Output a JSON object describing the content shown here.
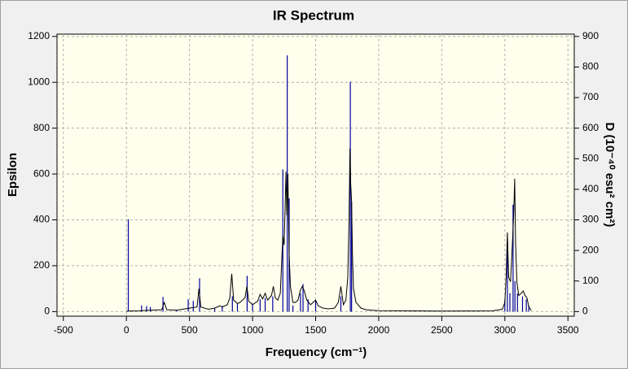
{
  "chart_data": {
    "type": "line",
    "title": "IR Spectrum",
    "xlabel": "Frequency (cm⁻¹)",
    "ylabel": "Epsilon",
    "y2label": "D (10⁻⁴⁰ esu² cm²)",
    "xlim": [
      -550,
      3550
    ],
    "xticks": [
      -500,
      0,
      500,
      1000,
      1500,
      2000,
      2500,
      3000,
      3500
    ],
    "ylim": [
      -20,
      1210
    ],
    "yticks": [
      0,
      200,
      400,
      600,
      800,
      1000,
      1200
    ],
    "y2lim": [
      -15,
      907.5
    ],
    "y2ticks": [
      0,
      100,
      200,
      300,
      400,
      500,
      600,
      700,
      800,
      900
    ],
    "grid": true,
    "color": "#000000",
    "x": [
      0,
      100,
      150,
      200,
      280,
      300,
      320,
      400,
      500,
      560,
      575,
      590,
      650,
      700,
      740,
      760,
      800,
      820,
      835,
      850,
      880,
      900,
      940,
      955,
      970,
      1000,
      1040,
      1060,
      1080,
      1100,
      1120,
      1150,
      1165,
      1180,
      1200,
      1220,
      1240,
      1250,
      1258,
      1265,
      1272,
      1280,
      1290,
      1300,
      1320,
      1340,
      1360,
      1380,
      1395,
      1410,
      1430,
      1460,
      1500,
      1520,
      1560,
      1600,
      1650,
      1680,
      1700,
      1720,
      1740,
      1755,
      1765,
      1772,
      1778,
      1785,
      1792,
      1800,
      1820,
      1860,
      1900,
      2000,
      2500,
      2900,
      2980,
      3000,
      3010,
      3020,
      3030,
      3045,
      3060,
      3070,
      3078,
      3085,
      3095,
      3110,
      3130,
      3145,
      3160,
      3175,
      3190,
      3210
    ],
    "values": [
      2,
      3,
      5,
      6,
      8,
      40,
      8,
      6,
      15,
      20,
      100,
      20,
      10,
      15,
      25,
      20,
      30,
      60,
      165,
      50,
      35,
      40,
      60,
      110,
      45,
      30,
      45,
      75,
      55,
      80,
      50,
      70,
      110,
      60,
      50,
      80,
      330,
      290,
      450,
      610,
      420,
      600,
      250,
      110,
      40,
      40,
      50,
      95,
      110,
      90,
      50,
      30,
      50,
      25,
      15,
      12,
      15,
      40,
      110,
      30,
      50,
      150,
      400,
      710,
      560,
      480,
      250,
      100,
      40,
      15,
      8,
      4,
      2,
      3,
      10,
      40,
      150,
      345,
      150,
      130,
      300,
      420,
      580,
      300,
      130,
      70,
      80,
      90,
      70,
      60,
      20,
      5
    ],
    "sticks": {
      "axis": "y2",
      "color": "#0000a0",
      "x": [
        15,
        120,
        160,
        190,
        290,
        400,
        490,
        530,
        580,
        700,
        760,
        840,
        880,
        957,
        1000,
        1060,
        1100,
        1160,
        1240,
        1275,
        1290,
        1320,
        1380,
        1400,
        1440,
        1500,
        1700,
        1775,
        1785,
        3000,
        3020,
        3040,
        3065,
        3080,
        3100,
        3140,
        3170,
        3190
      ],
      "values": [
        302,
        20,
        18,
        15,
        48,
        5,
        40,
        35,
        109,
        10,
        18,
        50,
        25,
        117,
        25,
        40,
        45,
        50,
        465,
        838,
        370,
        20,
        60,
        90,
        40,
        35,
        50,
        752,
        360,
        40,
        230,
        60,
        350,
        100,
        60,
        50,
        40,
        20
      ]
    }
  }
}
